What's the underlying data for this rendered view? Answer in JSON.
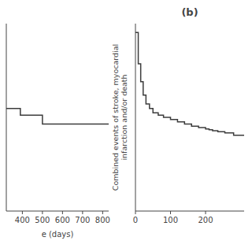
{
  "chart_data": [
    {
      "type": "step",
      "x": [
        320,
        370,
        390,
        440,
        500,
        560,
        830
      ],
      "values": [
        0.83,
        0.83,
        0.815,
        0.815,
        0.795,
        0.795,
        0.795
      ],
      "xlim": [
        320,
        830
      ],
      "ylim": [
        0.6,
        1.02
      ],
      "xticks": [
        400,
        500,
        600,
        700,
        800
      ],
      "xlabel": "e (days)",
      "color": "#3c3c3c",
      "tick_labels": "x"
    },
    {
      "type": "step",
      "title": "(b)",
      "ylabel": "Combined events of stroke, myocardial\ninfarction and/or death",
      "x": [
        0,
        8,
        15,
        22,
        30,
        40,
        50,
        65,
        80,
        100,
        120,
        140,
        160,
        180,
        200,
        210,
        220,
        235,
        255,
        280,
        310
      ],
      "values": [
        1.0,
        0.93,
        0.89,
        0.86,
        0.84,
        0.83,
        0.82,
        0.815,
        0.81,
        0.805,
        0.8,
        0.795,
        0.79,
        0.787,
        0.784,
        0.782,
        0.78,
        0.778,
        0.775,
        0.77,
        0.77
      ],
      "xlim": [
        0,
        310
      ],
      "ylim": [
        0.6,
        1.02
      ],
      "xticks": [
        0,
        100,
        200
      ],
      "color": "#3c3c3c",
      "tick_labels": "x"
    }
  ]
}
